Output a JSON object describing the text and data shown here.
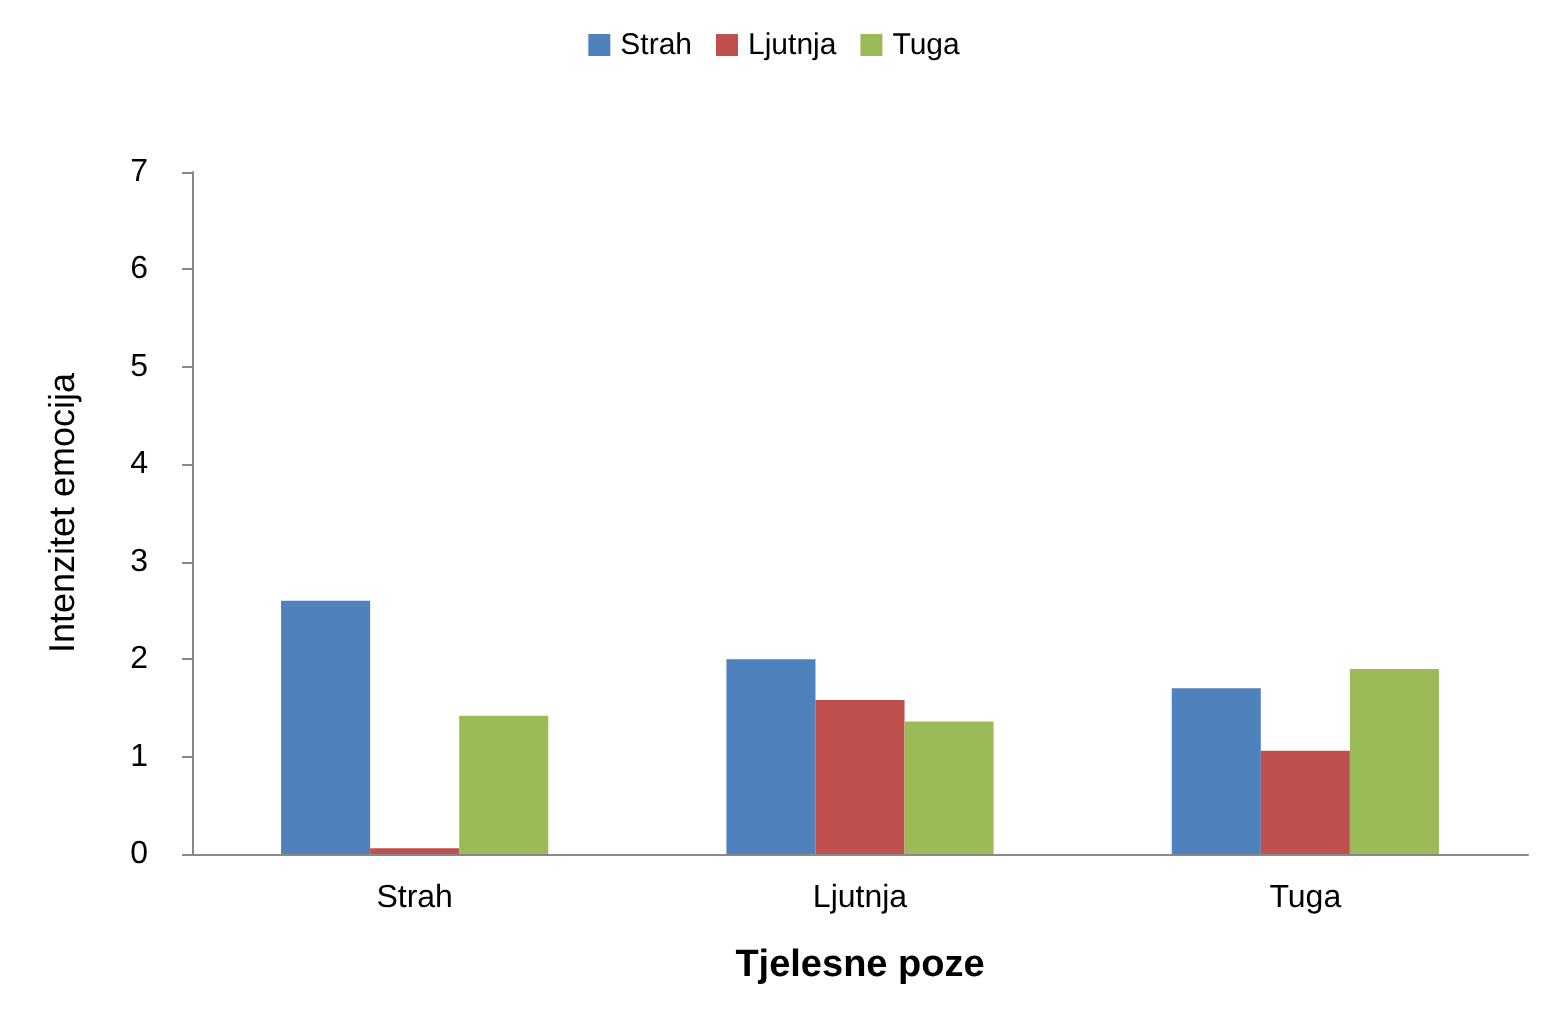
{
  "chart_data": {
    "type": "bar",
    "xlabel": "Tjelesne poze",
    "ylabel": "Intenzitet emocija",
    "categories": [
      "Strah",
      "Ljutnja",
      "Tuga"
    ],
    "series": [
      {
        "name": "Strah",
        "color": "#4f81bd",
        "values": [
          2.6,
          2.0,
          1.7
        ]
      },
      {
        "name": "Ljutnja",
        "color": "#c0504d",
        "values": [
          0.06,
          1.58,
          1.06
        ]
      },
      {
        "name": "Tuga",
        "color": "#9bbb59",
        "values": [
          1.42,
          1.36,
          1.9
        ]
      }
    ],
    "ylim": [
      0,
      7
    ],
    "yticks": [
      0,
      1,
      2,
      3,
      4,
      5,
      6,
      7
    ],
    "grid": false,
    "legend": "top"
  }
}
